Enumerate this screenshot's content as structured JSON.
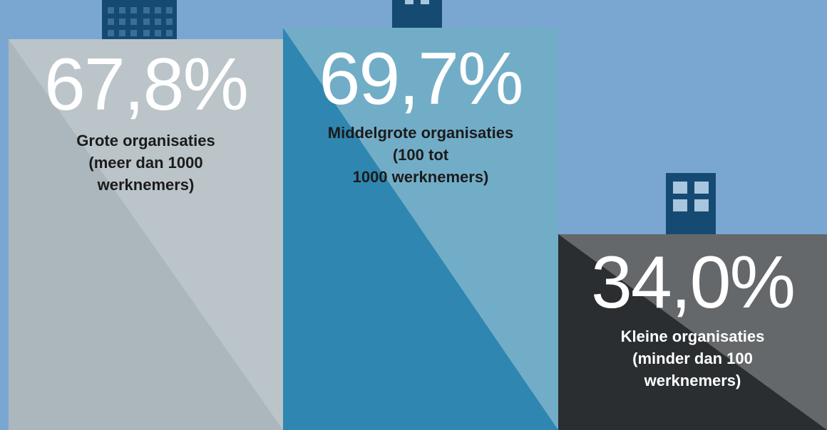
{
  "colors": {
    "background": "#7aa7d1",
    "large": "#abb7bd",
    "medium": "#2f86b0",
    "small": "#2a2e31",
    "building": "#154a73"
  },
  "chart_data": {
    "type": "bar",
    "categories": [
      "Grote organisaties",
      "Middelgrote organisaties",
      "Kleine organisaties"
    ],
    "values": [
      67.8,
      69.7,
      34.0
    ],
    "unit": "%",
    "bars": [
      {
        "key": "large",
        "value": 67.8,
        "value_label": "67,8%",
        "label_lines": [
          "Grote organisaties",
          "(meer dan 1000",
          "werknemers)"
        ],
        "color": "#abb7bd",
        "icon": "skyscraper-icon"
      },
      {
        "key": "medium",
        "value": 69.7,
        "value_label": "69,7%",
        "label_lines": [
          "Middelgrote organisaties",
          "(100 tot",
          "1000 werknemers)"
        ],
        "color": "#2f86b0",
        "icon": "office-building-icon"
      },
      {
        "key": "small",
        "value": 34.0,
        "value_label": "34,0%",
        "label_lines": [
          "Kleine organisaties",
          "(minder dan 100",
          "werknemers)"
        ],
        "color": "#2a2e31",
        "icon": "small-building-icon"
      }
    ]
  }
}
